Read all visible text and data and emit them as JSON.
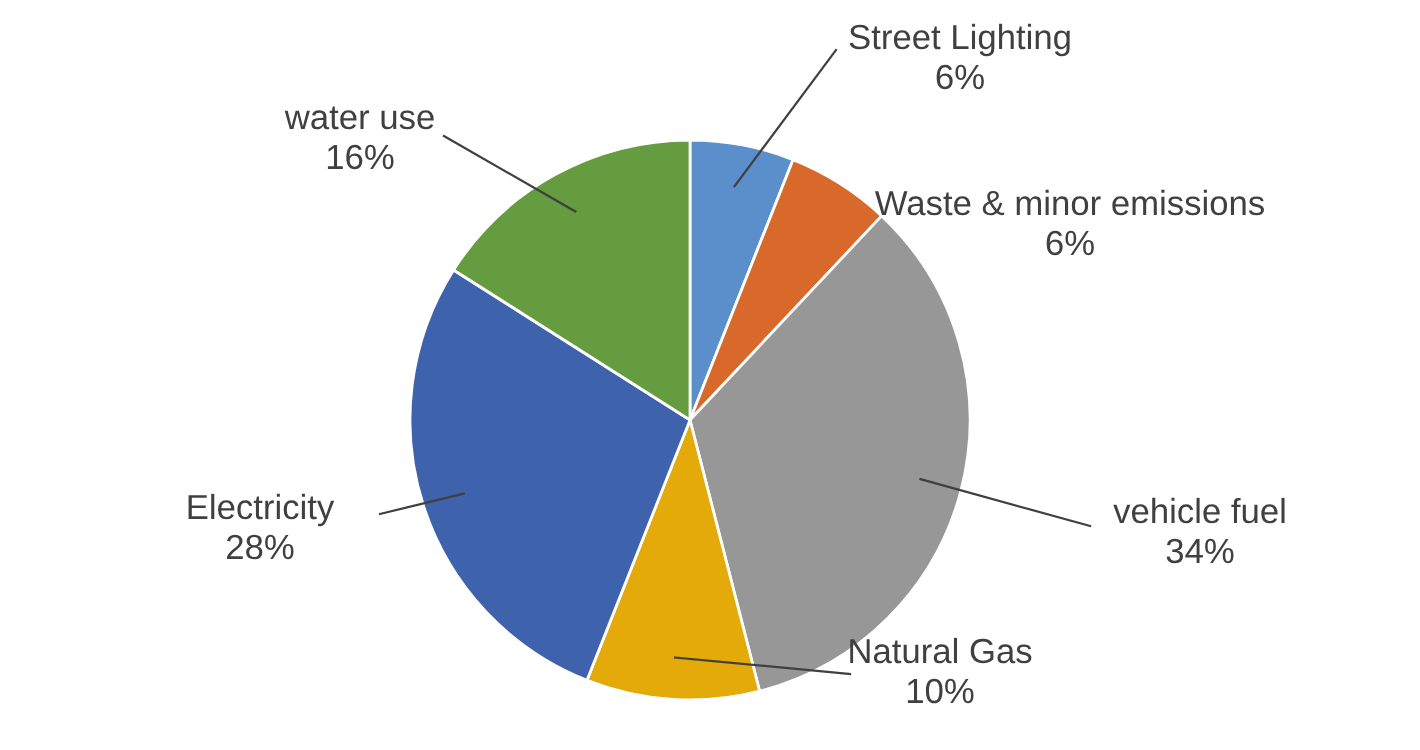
{
  "chart_data": {
    "type": "pie",
    "categories": [
      "Street Lighting",
      "Waste & minor emissions",
      "vehicle fuel",
      "Natural Gas",
      "Electricity",
      "water use"
    ],
    "values": [
      6,
      6,
      34,
      10,
      28,
      16
    ],
    "colors": [
      "#5b8fcb",
      "#d9692a",
      "#979797",
      "#e3aa0a",
      "#3f62ad",
      "#659c3f"
    ],
    "value_labels": [
      "6%",
      "6%",
      "34%",
      "10%",
      "28%",
      "16%"
    ]
  }
}
